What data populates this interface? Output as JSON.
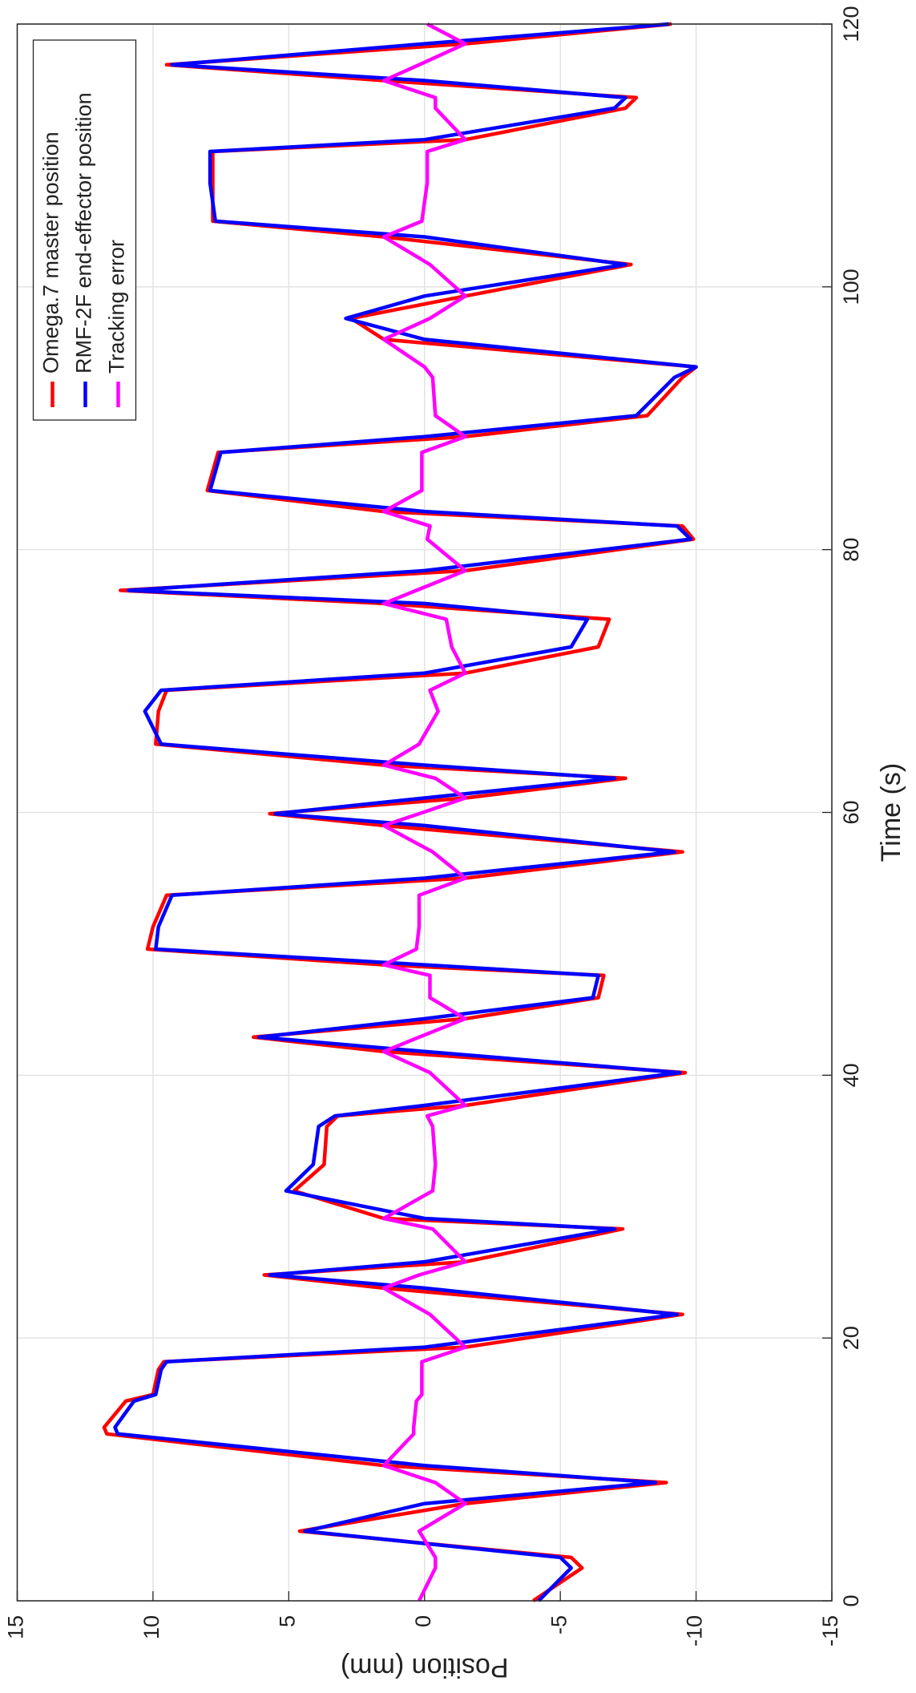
{
  "chart_data": {
    "type": "line",
    "xlabel": "Time (s)",
    "ylabel": "Position (mm)",
    "xlim": [
      0,
      120
    ],
    "xticks": [
      0,
      20,
      40,
      60,
      80,
      100,
      120
    ],
    "ylim": [
      -15,
      15
    ],
    "yticks": [
      -15,
      -10,
      -5,
      0,
      5,
      10,
      15
    ],
    "grid": true,
    "legend": "upper right",
    "rotated": true,
    "x": [
      0,
      2.5,
      3.3,
      5.3,
      7.4,
      9,
      10.3,
      12.7,
      13.2,
      15.2,
      15.7,
      17.6,
      18.2,
      19.3,
      21.8,
      23.8,
      24.8,
      25.8,
      28.3,
      29.1,
      31.2,
      33.2,
      36.1,
      36.9,
      37.7,
      40.2,
      41.8,
      42.9,
      44.3,
      45.9,
      47.6,
      48.4,
      49.6,
      51.3,
      53.7,
      55,
      57,
      59,
      59.9,
      61.1,
      62.6,
      63.6,
      65.2,
      67.7,
      69.3,
      70.6,
      72.6,
      74.7,
      75.9,
      76.9,
      78.4,
      80.8,
      81.8,
      82.9,
      84.5,
      87.4,
      88.6,
      90.2,
      93.1,
      93.9,
      96,
      97.6,
      99.3,
      101.7,
      103.8,
      105,
      107.9,
      110.3,
      111.2,
      113.6,
      114.4,
      115.7,
      116.9,
      118.5,
      120
    ],
    "series": [
      {
        "name": "Omega.7 master position",
        "color": "#ff0000",
        "values": [
          -4,
          -5.8,
          -5.4,
          4.6,
          -1.5,
          -8.9,
          1.5,
          11.7,
          11.8,
          11,
          10,
          9.8,
          9.6,
          -1.5,
          -9.5,
          1.5,
          5.9,
          -1.5,
          -7.3,
          1.5,
          4.8,
          3.7,
          3.6,
          3.2,
          -1.5,
          -9.6,
          1.5,
          6.3,
          -1.5,
          -6.4,
          -6.6,
          1.5,
          10.2,
          10,
          9.5,
          -1.5,
          -9.5,
          1.5,
          5.7,
          -1.5,
          -7.4,
          1.5,
          9.9,
          9.8,
          9.5,
          -1.5,
          -6.4,
          -6.8,
          1.5,
          11.2,
          -1.5,
          -9.9,
          -9.5,
          1.5,
          8,
          7.6,
          -1.5,
          -8.2,
          -9.5,
          -10,
          1.5,
          2.7,
          -1.5,
          -7.6,
          1.5,
          7.8,
          7.8,
          7.8,
          -1.5,
          -7.4,
          -7.8,
          1.5,
          9.5,
          -1.5,
          -9.1
        ]
      },
      {
        "name": "RMF-2F end-effector position",
        "color": "#0000ff",
        "values": [
          -4.2,
          -5.4,
          -5,
          4.4,
          0,
          -8.5,
          0,
          11.3,
          11.4,
          10.7,
          9.9,
          9.7,
          9.5,
          0,
          -9.3,
          0,
          5.7,
          0,
          -7,
          0,
          5.1,
          4.1,
          3.9,
          3.3,
          0,
          -9.4,
          0,
          6.1,
          0,
          -6.2,
          -6.4,
          0,
          9.9,
          9.8,
          9.3,
          0,
          -9.2,
          0,
          5.5,
          0,
          -7,
          0,
          9.7,
          10.3,
          9.7,
          0,
          -5.4,
          -6,
          0,
          10.9,
          0,
          -9.8,
          -9.3,
          0,
          7.9,
          7.5,
          0,
          -7.8,
          -9.2,
          -10,
          0,
          2.9,
          0,
          -7.4,
          0,
          7.7,
          7.9,
          7.9,
          0,
          -7,
          -7.4,
          0,
          9.3,
          0,
          -9
        ]
      },
      {
        "name": "Tracking error",
        "color": "#ff00ff",
        "values": [
          0.2,
          -0.4,
          -0.4,
          0.2,
          -1.5,
          -0.4,
          1.5,
          0.4,
          0.4,
          0.3,
          0.1,
          0.1,
          0.1,
          -1.5,
          -0.2,
          1.5,
          0.2,
          -1.5,
          -0.3,
          1.5,
          -0.3,
          -0.4,
          -0.3,
          -0.1,
          -1.5,
          -0.2,
          1.5,
          0.2,
          -1.5,
          -0.2,
          -0.2,
          1.5,
          0.3,
          0.2,
          0.2,
          -1.5,
          -0.3,
          1.5,
          0.2,
          -1.5,
          -0.4,
          1.5,
          0.2,
          -0.5,
          -0.2,
          -1.5,
          -1,
          -0.8,
          1.5,
          0.3,
          -1.5,
          -0.1,
          -0.2,
          1.5,
          0.1,
          0.1,
          -1.5,
          -0.4,
          -0.3,
          0,
          1.5,
          -0.2,
          -1.5,
          -0.2,
          1.5,
          0.1,
          -0.1,
          -0.1,
          -1.5,
          -0.4,
          -0.4,
          1.5,
          0.2,
          -1.5,
          -0.1
        ]
      }
    ]
  }
}
